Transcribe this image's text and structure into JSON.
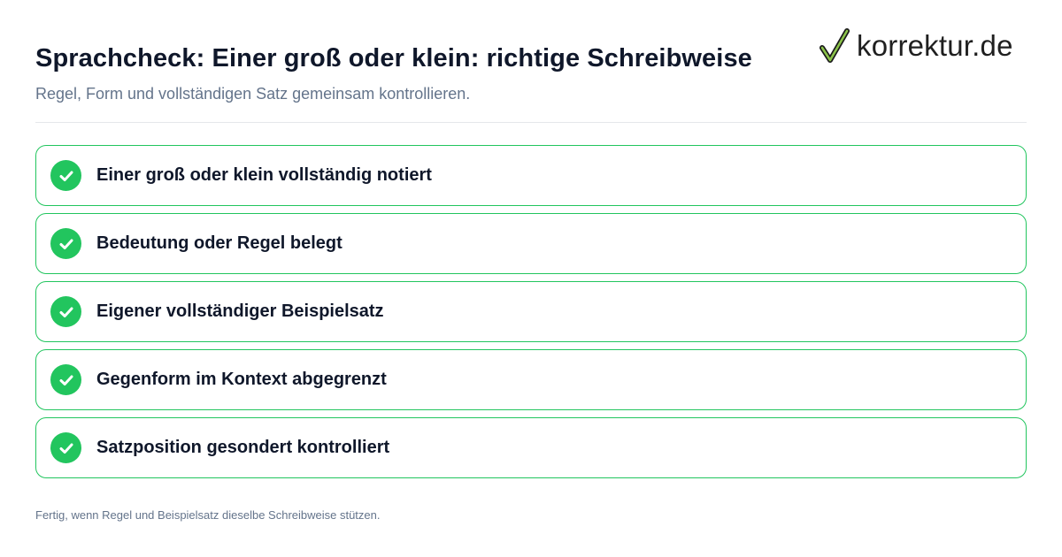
{
  "header": {
    "title": "Sprachcheck: Einer groß oder klein: richtige Schreibweise",
    "subtitle": "Regel, Form und vollständigen Satz gemeinsam kontrollieren."
  },
  "logo": {
    "text": "korrektur.de",
    "icon": "checkmark-icon"
  },
  "checklist": {
    "items": [
      {
        "label": "Einer groß oder klein vollständig notiert",
        "checked": true
      },
      {
        "label": "Bedeutung oder Regel belegt",
        "checked": true
      },
      {
        "label": "Eigener vollständiger Beispielsatz",
        "checked": true
      },
      {
        "label": "Gegenform im Kontext abgegrenzt",
        "checked": true
      },
      {
        "label": "Satzposition gesondert kontrolliert",
        "checked": true
      }
    ]
  },
  "footer": {
    "text": "Fertig, wenn Regel und Beispielsatz dieselbe Schreibweise stützen."
  },
  "colors": {
    "accent_green": "#22c55e",
    "title": "#0f172a",
    "muted": "#64748b"
  }
}
